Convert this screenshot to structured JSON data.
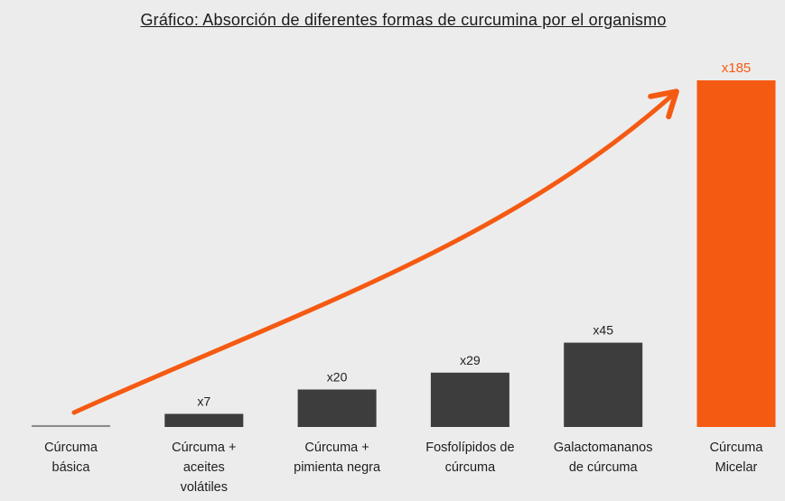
{
  "chart_data": {
    "type": "bar",
    "title": "Gráfico: Absorción de diferentes formas de curcumina por el organismo",
    "categories": [
      [
        "Cúrcuma",
        "básica"
      ],
      [
        "Cúrcuma +",
        "aceites",
        "volátiles"
      ],
      [
        "Cúrcuma +",
        "pimienta negra"
      ],
      [
        "Fosfolípidos de",
        "cúrcuma"
      ],
      [
        "Galactomananos",
        "de cúrcuma"
      ],
      [
        "Cúrcuma",
        "Micelar"
      ]
    ],
    "values": [
      1,
      7,
      20,
      29,
      45,
      185
    ],
    "value_labels": [
      "",
      "x7",
      "x20",
      "x29",
      "x45",
      "x185"
    ],
    "ylim": [
      0,
      185
    ],
    "grid": false,
    "legend": "none",
    "colors": {
      "bar": "#3d3d3d",
      "baseline_bar": "#8c8c8c",
      "highlight": "#f55a12",
      "background": "#ececec"
    }
  }
}
